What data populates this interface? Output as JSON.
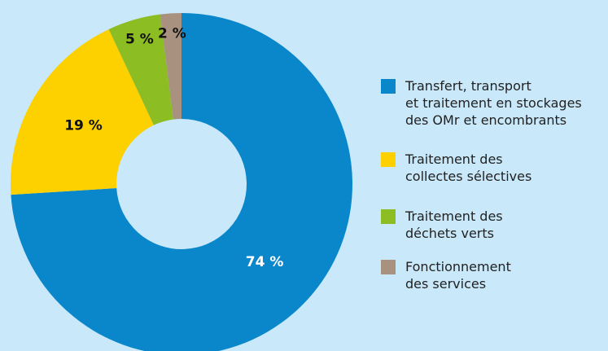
{
  "chart_data": {
    "type": "pie",
    "donut": true,
    "categories": [
      "Transfert, transport\net traitement en stockages\ndes OMr et encombrants",
      "Traitement des\ncollectes sélectives",
      "Traitement des\ndéchets verts",
      "Fonctionnement\ndes services"
    ],
    "values": [
      74,
      19,
      5,
      2
    ],
    "value_labels": [
      "74 %",
      "19 %",
      "5 %",
      "2 %"
    ],
    "colors": [
      "#0a87cb",
      "#fdd000",
      "#8cbd22",
      "#a8927f"
    ],
    "legend": "right"
  }
}
